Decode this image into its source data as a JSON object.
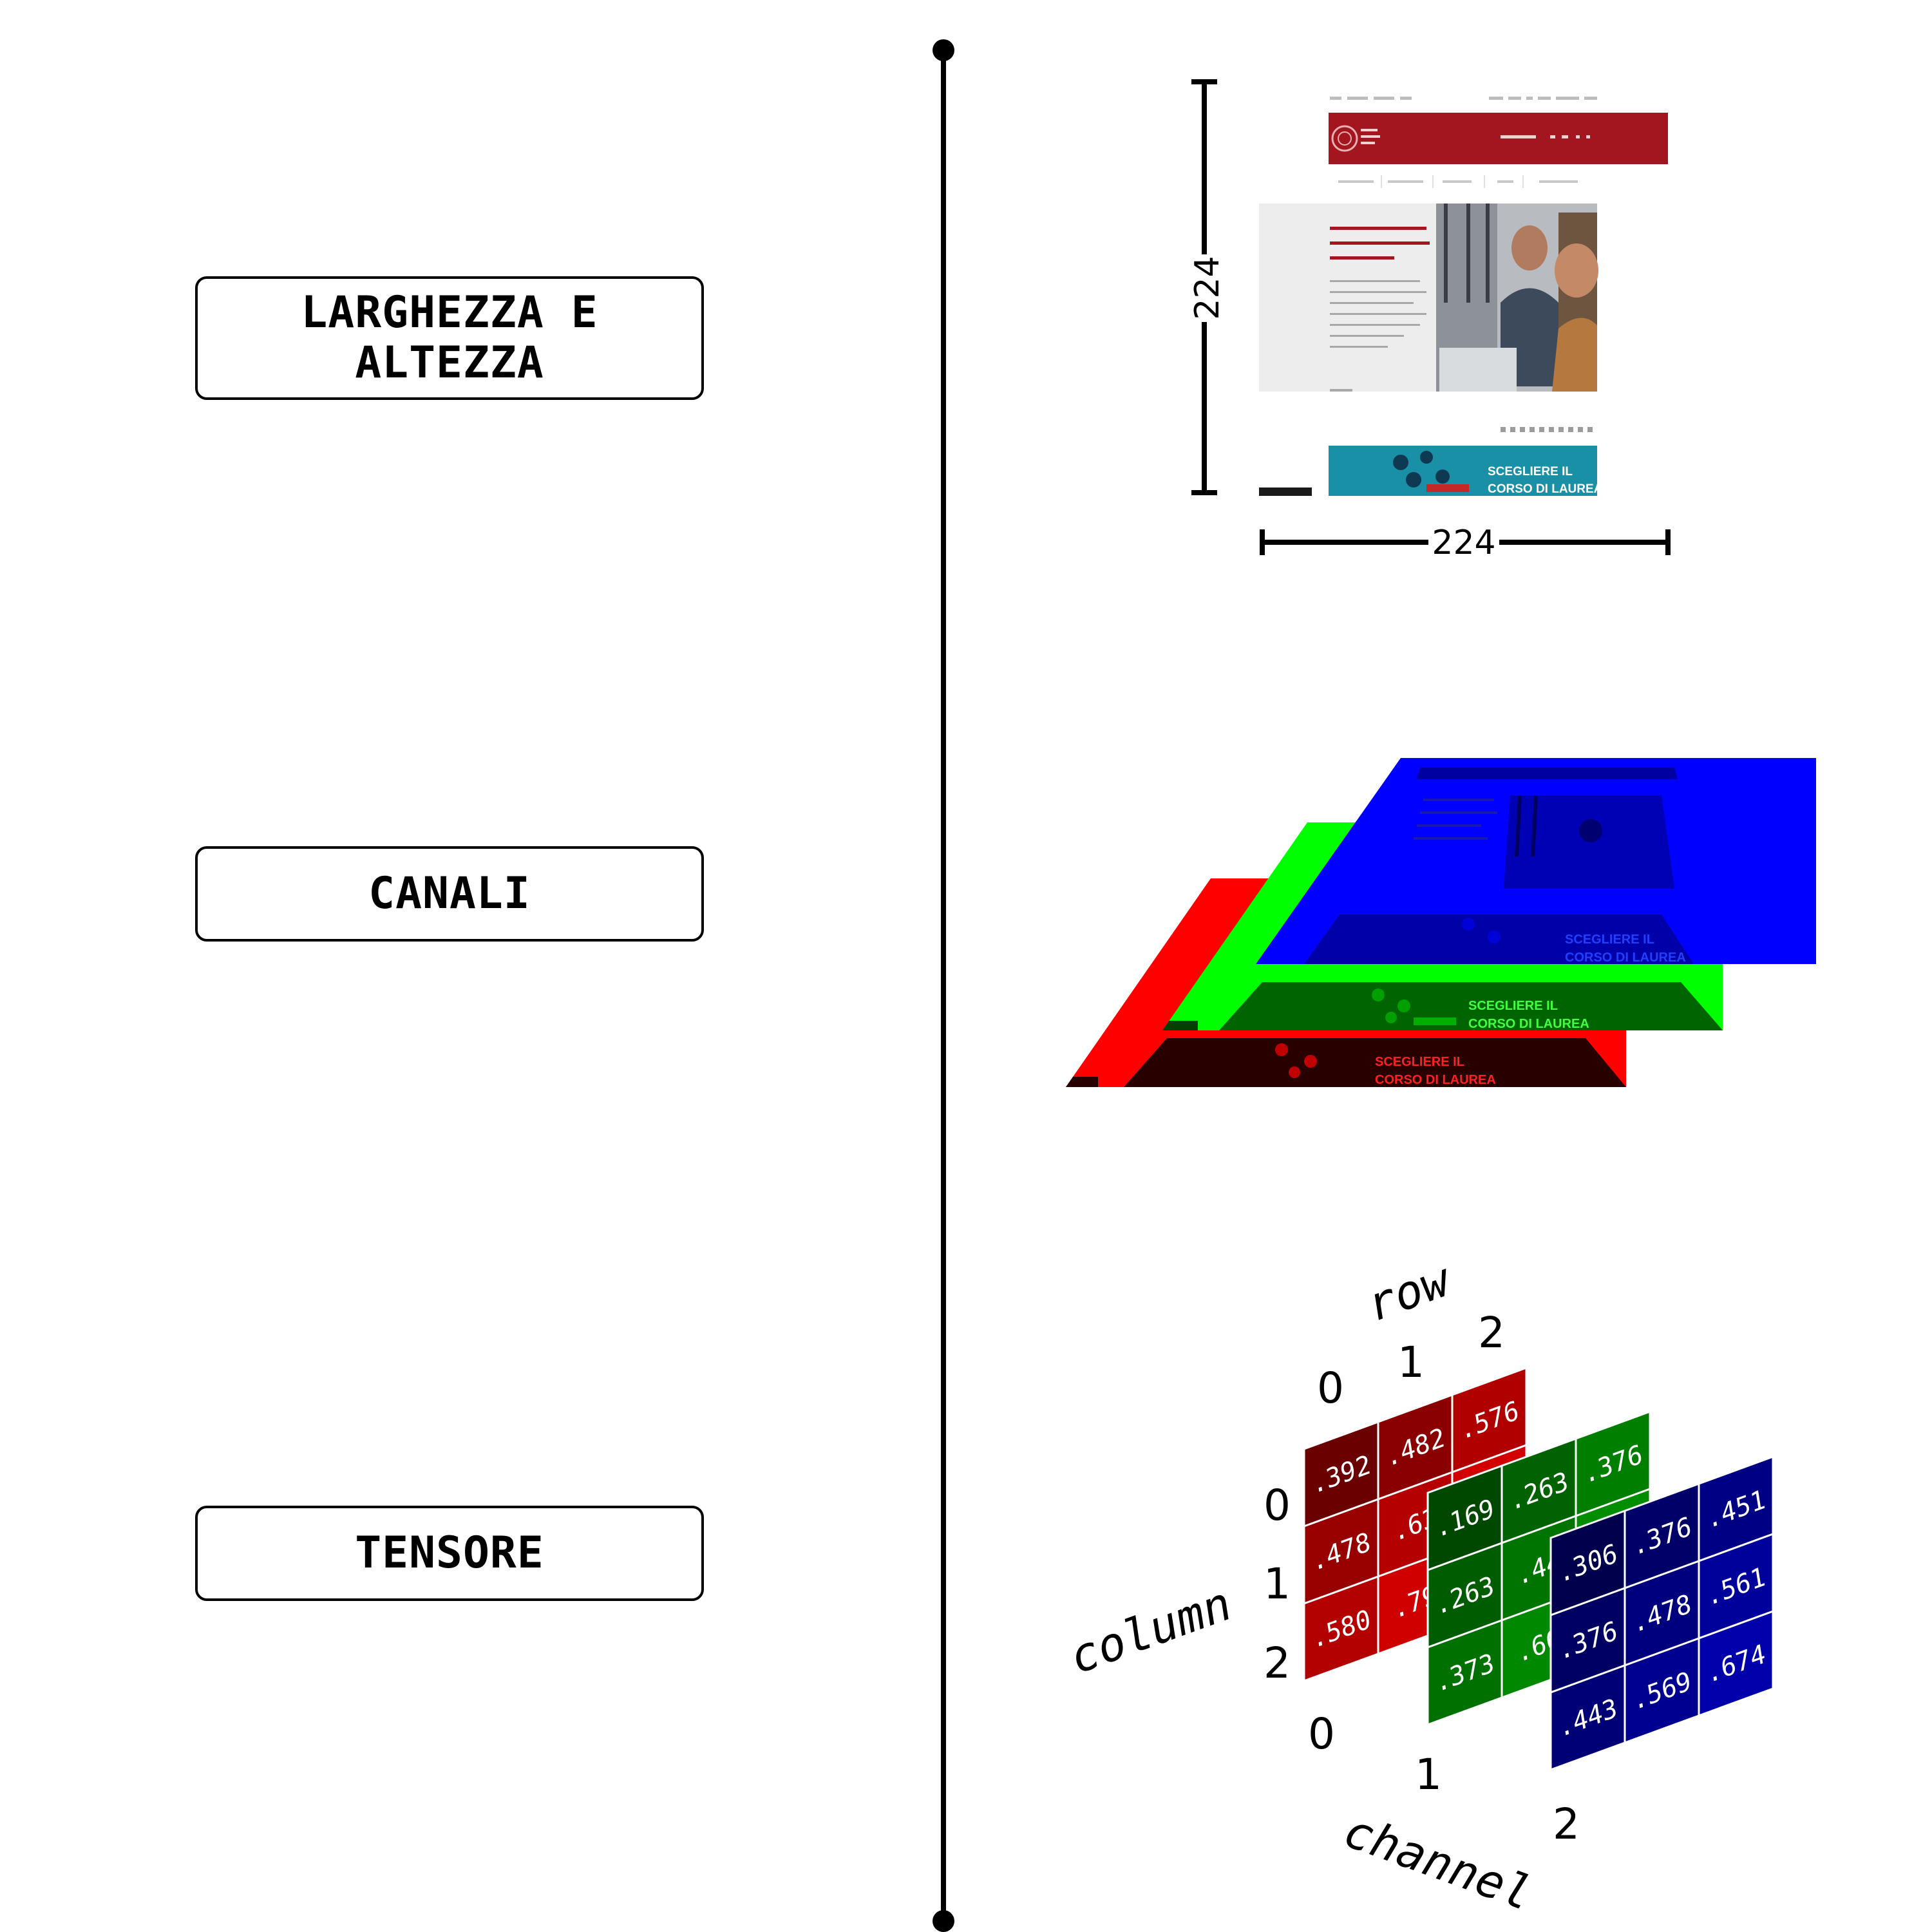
{
  "steps": [
    {
      "label": "LARGHEZZA E ALTEZZA"
    },
    {
      "label": "CANALI"
    },
    {
      "label": "TENSORE"
    }
  ],
  "dimensions": {
    "width": "224",
    "height": "224"
  },
  "webpage": {
    "banner_text_line1": "SCEGLIERE IL",
    "banner_text_line2": "CORSO DI LAUREA",
    "header_color": "#a3151f"
  },
  "channels": [
    {
      "name": "red",
      "color": "#ff0000"
    },
    {
      "name": "green",
      "color": "#00ff00"
    },
    {
      "name": "blue",
      "color": "#0000ff"
    }
  ],
  "tensor": {
    "axis_row": "row",
    "axis_column": "column",
    "axis_channel": "channel",
    "indices": [
      "0",
      "1",
      "2"
    ],
    "red": [
      [
        ".392",
        ".482",
        ".576"
      ],
      [
        ".478",
        ".63",
        ""
      ],
      [
        ".580",
        ".79",
        ""
      ]
    ],
    "green": [
      [
        ".169",
        ".263",
        ".376"
      ],
      [
        ".263",
        ".44",
        ""
      ],
      [
        ".373",
        ".60",
        ""
      ]
    ],
    "blue": [
      [
        ".306",
        ".376",
        ".451"
      ],
      [
        ".376",
        ".478",
        ".561"
      ],
      [
        ".443",
        ".569",
        ".674"
      ]
    ]
  }
}
